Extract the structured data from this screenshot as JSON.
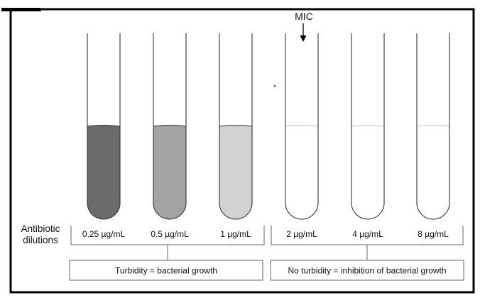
{
  "figure": {
    "mic_marker_label": "MIC",
    "row_label_line1": "Antibiotic",
    "row_label_line2": "dilutions",
    "tubes": [
      {
        "concentration_label": "0.25 µg/mL",
        "turbidity_color": "#6b6b6b",
        "turbid": true
      },
      {
        "concentration_label": "0.5 µg/mL",
        "turbidity_color": "#a3a3a3",
        "turbid": true
      },
      {
        "concentration_label": "1 µg/mL",
        "turbidity_color": "#d2d2d2",
        "turbid": true
      },
      {
        "concentration_label": "2 µg/mL",
        "turbidity_color": "#ffffff",
        "turbid": false
      },
      {
        "concentration_label": "4 µg/mL",
        "turbidity_color": "#ffffff",
        "turbid": false
      },
      {
        "concentration_label": "8 µg/mL",
        "turbidity_color": "#ffffff",
        "turbid": false
      }
    ],
    "group_growth_label": "Turbidity = bacterial growth",
    "group_inhibition_label": "No turbidity = inhibition of bacterial growth",
    "colors": {
      "frame": "#000000",
      "tube_outline": "#333333",
      "meniscus_clear": "#bdbdbd",
      "bracket": "#666666"
    }
  }
}
